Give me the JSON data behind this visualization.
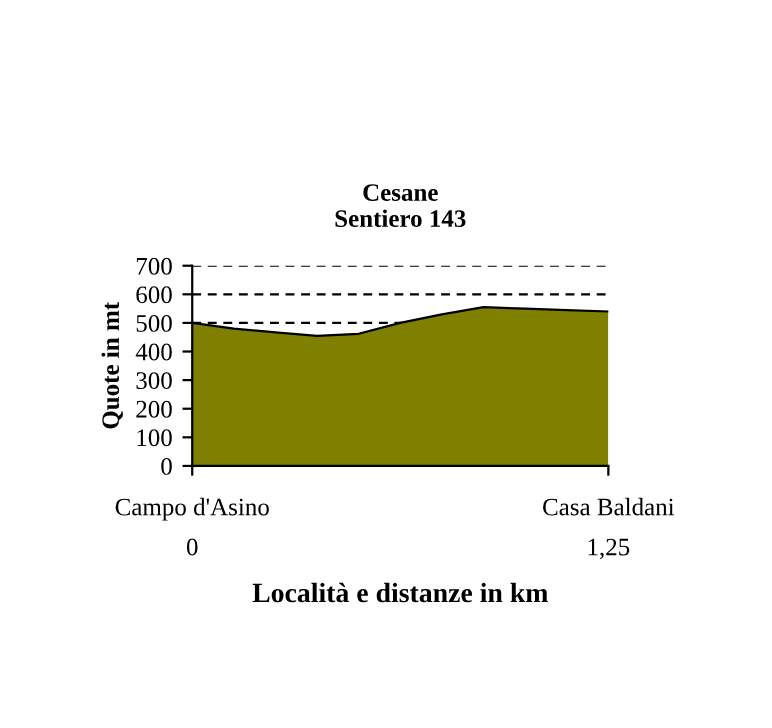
{
  "chart_data": {
    "type": "area",
    "title": "Cesane\nSentiero 143",
    "xlabel": "Località e distanze in km",
    "ylabel": "Quote in mt",
    "categories": [
      "Campo d'Asino\n0",
      null,
      null,
      null,
      null,
      null,
      null,
      null,
      null,
      null,
      "Casa Baldani\n1,25"
    ],
    "series": [
      {
        "color": "#808000",
        "values": [
          500,
          480,
          467,
          455,
          462,
          500,
          530,
          555,
          550,
          545,
          540
        ]
      }
    ],
    "ylim": [
      0,
      700
    ],
    "yticks": [
      0,
      100,
      200,
      300,
      400,
      500,
      600,
      700
    ],
    "grid": "y"
  }
}
